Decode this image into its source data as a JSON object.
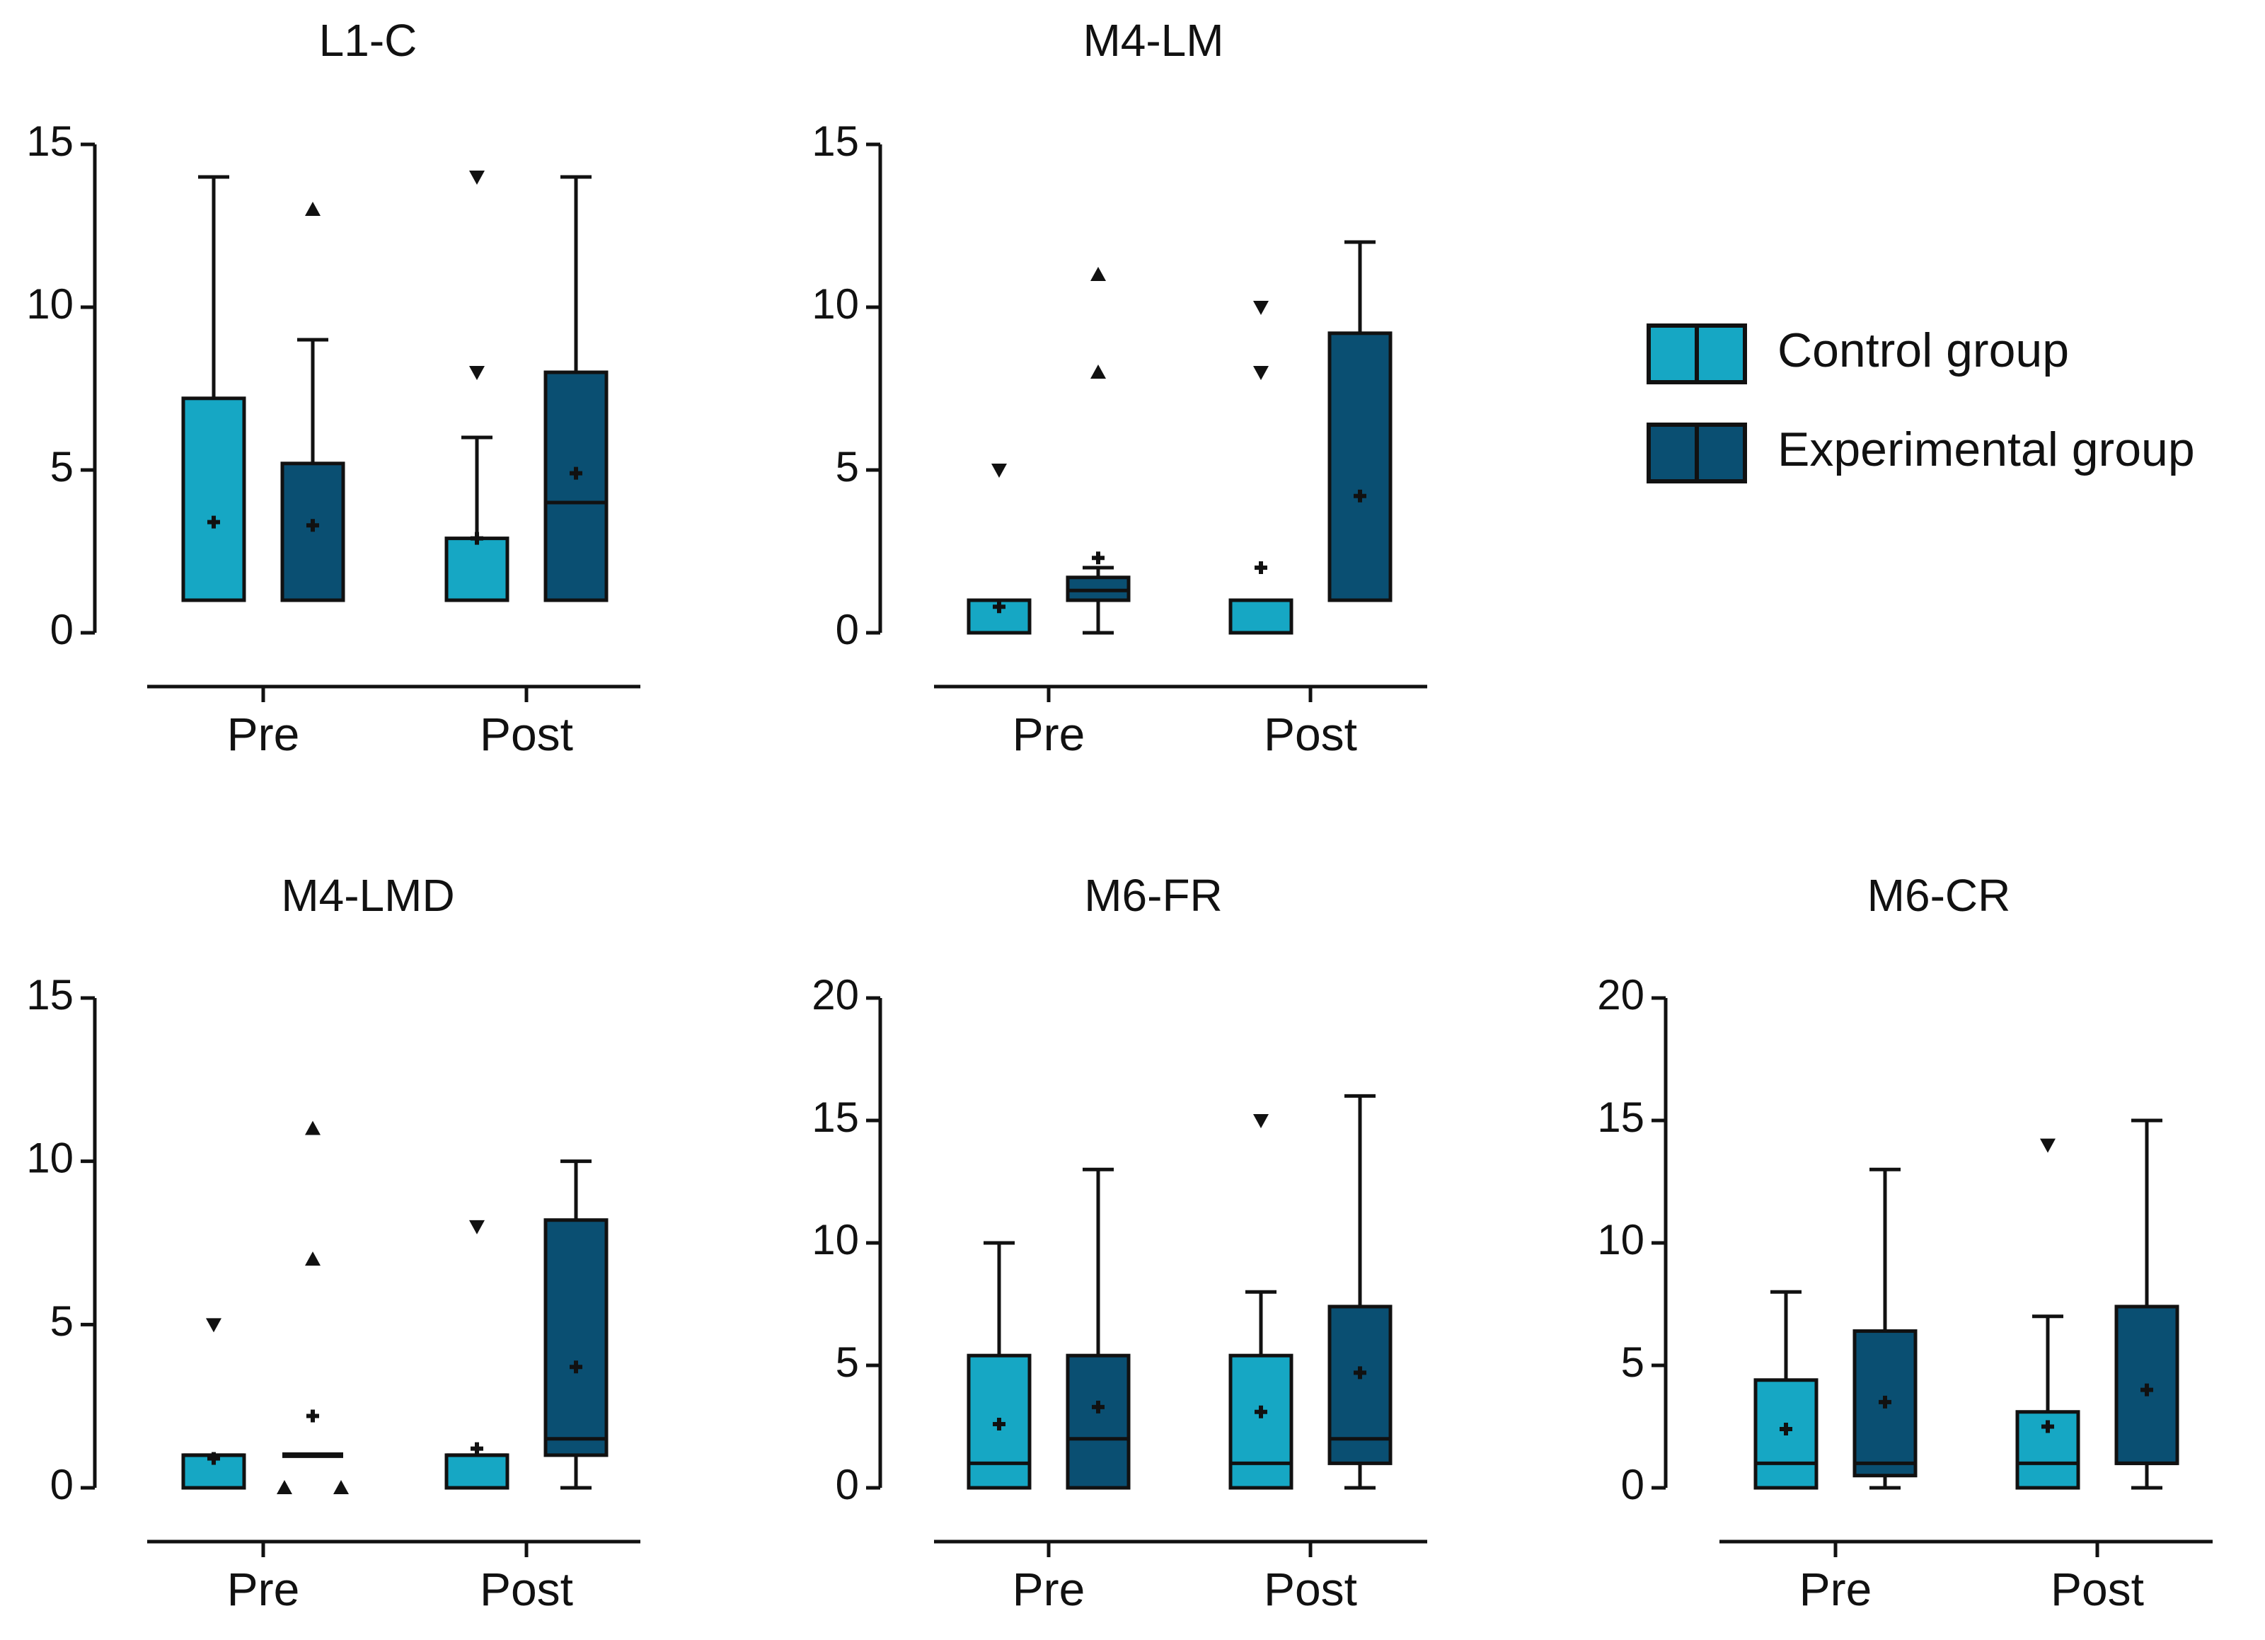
{
  "colors": {
    "control": "#16a7c4",
    "experimental": "#0a4f72",
    "axis": "#111111",
    "background": "#ffffff"
  },
  "legend": {
    "items": [
      {
        "name": "Control group",
        "color": "#16a7c4"
      },
      {
        "name": "Experimental group",
        "color": "#0a4f72"
      }
    ]
  },
  "chart_data": [
    {
      "type": "box",
      "title": "L1-C",
      "categories": [
        "Pre",
        "Post"
      ],
      "yticks": [
        0,
        5,
        10,
        15
      ],
      "ylim": [
        0,
        15
      ],
      "boxes": [
        {
          "category": "Pre",
          "series": "Control group",
          "q1": 1,
          "median": 1,
          "q3": 7.2,
          "whisker_low": 1,
          "whisker_high": 14,
          "mean": 3.4,
          "outliers": []
        },
        {
          "category": "Pre",
          "series": "Experimental group",
          "q1": 1,
          "median": 1,
          "q3": 5.2,
          "whisker_low": 1,
          "whisker_high": 9,
          "mean": 3.3,
          "outliers": [
            13
          ]
        },
        {
          "category": "Post",
          "series": "Control group",
          "q1": 1,
          "median": 1,
          "q3": 2.9,
          "whisker_low": 1,
          "whisker_high": 6,
          "mean": 2.9,
          "outliers": [
            8,
            14
          ]
        },
        {
          "category": "Post",
          "series": "Experimental group",
          "q1": 1,
          "median": 4,
          "q3": 8,
          "whisker_low": 1,
          "whisker_high": 14,
          "mean": 4.9,
          "outliers": []
        }
      ]
    },
    {
      "type": "box",
      "title": "M4-LM",
      "categories": [
        "Pre",
        "Post"
      ],
      "yticks": [
        0,
        5,
        10,
        15
      ],
      "ylim": [
        0,
        15
      ],
      "boxes": [
        {
          "category": "Pre",
          "series": "Control group",
          "q1": 0,
          "median": 1,
          "q3": 1,
          "whisker_low": 0,
          "whisker_high": 1,
          "mean": 0.8,
          "outliers": [
            5
          ]
        },
        {
          "category": "Pre",
          "series": "Experimental group",
          "q1": 1,
          "median": 1.3,
          "q3": 1.7,
          "whisker_low": 0,
          "whisker_high": 2,
          "mean": 2.3,
          "outliers": [
            8,
            11
          ]
        },
        {
          "category": "Post",
          "series": "Control group",
          "q1": 0,
          "median": 1,
          "q3": 1,
          "whisker_low": 0,
          "whisker_high": 1,
          "mean": 2,
          "outliers": [
            8,
            10
          ]
        },
        {
          "category": "Post",
          "series": "Experimental group",
          "q1": 1,
          "median": 1,
          "q3": 9.2,
          "whisker_low": 1,
          "whisker_high": 12,
          "mean": 4.2,
          "outliers": []
        }
      ]
    },
    {
      "type": "box",
      "title": "M4-LMD",
      "categories": [
        "Pre",
        "Post"
      ],
      "yticks": [
        0,
        5,
        10,
        15
      ],
      "ylim": [
        0,
        15
      ],
      "boxes": [
        {
          "category": "Pre",
          "series": "Control group",
          "q1": 0,
          "median": 1,
          "q3": 1,
          "whisker_low": 0,
          "whisker_high": 1,
          "mean": 0.9,
          "outliers": [
            5
          ]
        },
        {
          "category": "Pre",
          "series": "Experimental group",
          "q1": 1,
          "median": 1,
          "q3": 1,
          "whisker_low": 1,
          "whisker_high": 1,
          "mean": 2.2,
          "outliers": [
            0,
            0,
            7,
            11
          ]
        },
        {
          "category": "Post",
          "series": "Control group",
          "q1": 0,
          "median": 1,
          "q3": 1,
          "whisker_low": 0,
          "whisker_high": 1,
          "mean": 1.2,
          "outliers": [
            8
          ]
        },
        {
          "category": "Post",
          "series": "Experimental group",
          "q1": 1,
          "median": 1.5,
          "q3": 8.2,
          "whisker_low": 0,
          "whisker_high": 10,
          "mean": 3.7,
          "outliers": []
        }
      ]
    },
    {
      "type": "box",
      "title": "M6-FR",
      "categories": [
        "Pre",
        "Post"
      ],
      "yticks": [
        0,
        5,
        10,
        15,
        20
      ],
      "ylim": [
        0,
        20
      ],
      "boxes": [
        {
          "category": "Pre",
          "series": "Control group",
          "q1": 0,
          "median": 1,
          "q3": 5.4,
          "whisker_low": 0,
          "whisker_high": 10,
          "mean": 2.6,
          "outliers": []
        },
        {
          "category": "Pre",
          "series": "Experimental group",
          "q1": 0,
          "median": 2,
          "q3": 5.4,
          "whisker_low": 0,
          "whisker_high": 13,
          "mean": 3.3,
          "outliers": []
        },
        {
          "category": "Post",
          "series": "Control group",
          "q1": 0,
          "median": 1,
          "q3": 5.4,
          "whisker_low": 0,
          "whisker_high": 8,
          "mean": 3.1,
          "outliers": [
            15
          ]
        },
        {
          "category": "Post",
          "series": "Experimental group",
          "q1": 1,
          "median": 2,
          "q3": 7.4,
          "whisker_low": 0,
          "whisker_high": 16,
          "mean": 4.7,
          "outliers": []
        }
      ]
    },
    {
      "type": "box",
      "title": "M6-CR",
      "categories": [
        "Pre",
        "Post"
      ],
      "yticks": [
        0,
        5,
        10,
        15,
        20
      ],
      "ylim": [
        0,
        20
      ],
      "boxes": [
        {
          "category": "Pre",
          "series": "Control group",
          "q1": 0,
          "median": 1,
          "q3": 4.4,
          "whisker_low": 0,
          "whisker_high": 8,
          "mean": 2.4,
          "outliers": []
        },
        {
          "category": "Pre",
          "series": "Experimental group",
          "q1": 0.5,
          "median": 1,
          "q3": 6.4,
          "whisker_low": 0,
          "whisker_high": 13,
          "mean": 3.5,
          "outliers": []
        },
        {
          "category": "Post",
          "series": "Control group",
          "q1": 0,
          "median": 1,
          "q3": 3.1,
          "whisker_low": 0,
          "whisker_high": 7,
          "mean": 2.5,
          "outliers": [
            14
          ]
        },
        {
          "category": "Post",
          "series": "Experimental group",
          "q1": 1,
          "median": 1,
          "q3": 7.4,
          "whisker_low": 0,
          "whisker_high": 15,
          "mean": 4,
          "outliers": []
        }
      ]
    }
  ]
}
